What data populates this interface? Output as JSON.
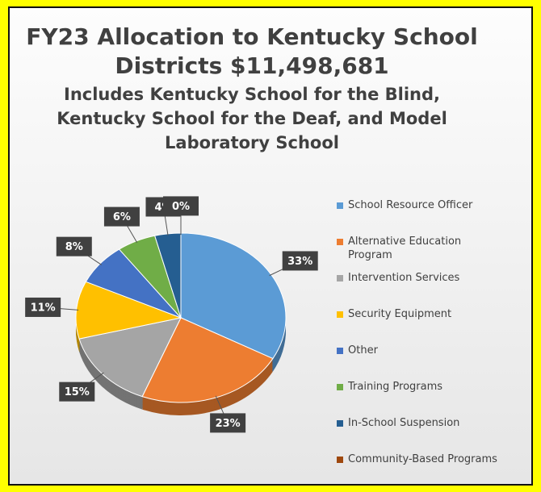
{
  "chart_data": {
    "type": "pie",
    "title": "FY23 Allocation to Kentucky School Districts $11,498,681",
    "subtitle": "Includes Kentucky School for the Blind, Kentucky School for the Deaf, and Model Laboratory School",
    "categories": [
      "School Resource Officer",
      "Alternative Education Program",
      "Intervention Services",
      "Security Equipment",
      "Other",
      "Training Programs",
      "In-School Suspension",
      "Community-Based Programs"
    ],
    "values": [
      33,
      23,
      15,
      11,
      8,
      6,
      4,
      0
    ],
    "value_labels": [
      "33%",
      "23%",
      "15%",
      "11%",
      "8%",
      "6%",
      "4%",
      "0%"
    ],
    "colors": [
      "#5b9bd5",
      "#ed7d31",
      "#a5a5a5",
      "#ffc000",
      "#4472c4",
      "#70ad47",
      "#255e91",
      "#9e480e"
    ]
  }
}
